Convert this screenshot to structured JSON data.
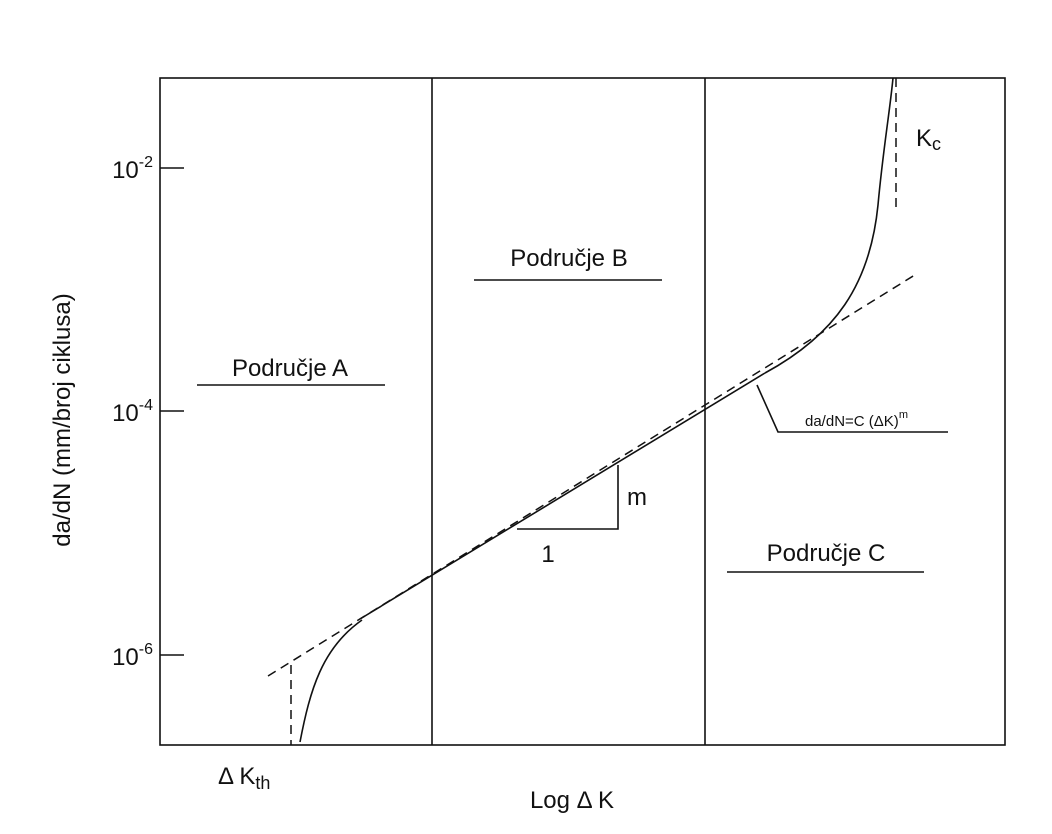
{
  "y_axis_label": "da/dN (mm/broj ciklusa)",
  "x_axis_label": "Log Δ K",
  "y_ticks": [
    {
      "base": "10",
      "exp": "-2"
    },
    {
      "base": "10",
      "exp": "-4"
    },
    {
      "base": "10",
      "exp": "-6"
    }
  ],
  "regions": [
    "Područje A",
    "Područje B",
    "Područje C"
  ],
  "slope": {
    "rise": "m",
    "run": "1"
  },
  "equation": {
    "text": "da/dN=C (ΔK)",
    "exp": "m"
  },
  "kc": {
    "base": "K",
    "sub": "c"
  },
  "kth": {
    "base": "Δ K",
    "sub": "th"
  }
}
